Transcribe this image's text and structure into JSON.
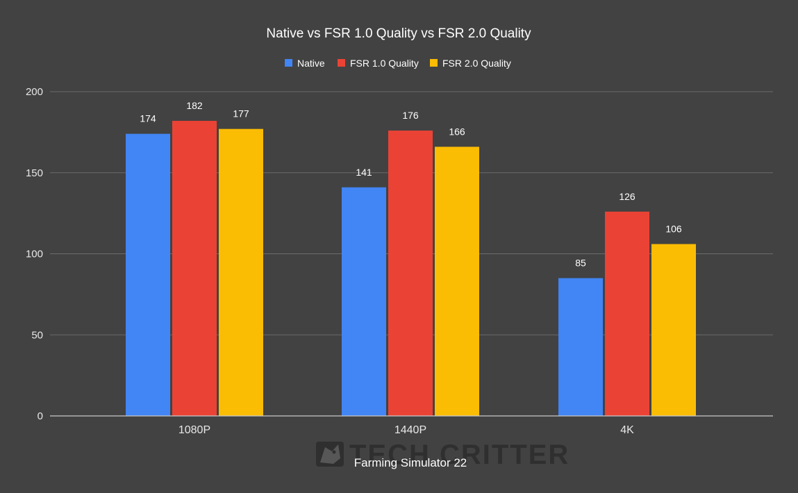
{
  "chart_data": {
    "type": "bar",
    "title": "Native vs FSR 1.0 Quality vs FSR 2.0 Quality",
    "xlabel": "Farming Simulator 22",
    "ylabel": "",
    "categories": [
      "1080P",
      "1440P",
      "4K"
    ],
    "series": [
      {
        "name": "Native",
        "values": [
          174,
          141,
          85
        ],
        "color": "#4285f4"
      },
      {
        "name": "FSR 1.0 Quality",
        "values": [
          182,
          176,
          126
        ],
        "color": "#ea4335"
      },
      {
        "name": "FSR 2.0 Quality",
        "values": [
          177,
          166,
          106
        ],
        "color": "#fbbc04"
      }
    ],
    "ylim": [
      0,
      200
    ],
    "yticks": [
      0,
      50,
      100,
      150,
      200
    ],
    "grid": true,
    "legend": "top-center"
  },
  "watermark": {
    "text": "TECH CRITTER",
    "icon": "critter-logo-icon"
  },
  "colors": {
    "background": "#424242",
    "gridline": "#6b6b6b",
    "axis": "#c8c8c8"
  }
}
